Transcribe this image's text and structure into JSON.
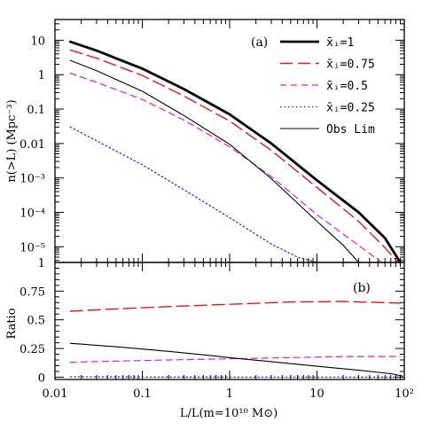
{
  "chart_data": [
    {
      "type": "line",
      "panel_label": "(a)",
      "ylabel": "n(>L) (Mpc⁻³)",
      "xscale": "log",
      "yscale": "log",
      "xlim": [
        0.01,
        100
      ],
      "ylim": [
        3.5e-06,
        40
      ],
      "xticks": [
        {
          "v": 0.01,
          "label": ""
        },
        {
          "v": 0.1,
          "label": ""
        },
        {
          "v": 1,
          "label": ""
        },
        {
          "v": 10,
          "label": ""
        },
        {
          "v": 100,
          "label": ""
        }
      ],
      "yticks": [
        {
          "v": 10,
          "label": "10"
        },
        {
          "v": 1,
          "label": "1"
        },
        {
          "v": 0.1,
          "label": "0.1"
        },
        {
          "v": 0.01,
          "label": "0.01"
        },
        {
          "v": 0.001,
          "label": "10⁻³"
        },
        {
          "v": 0.0001,
          "label": "10⁻⁴"
        },
        {
          "v": 1e-05,
          "label": "10⁻⁵"
        }
      ],
      "legend_position": "top-right",
      "series": [
        {
          "name": "x̄ᵢ=1",
          "color": "#000000",
          "dash": "",
          "width": 2.8,
          "x": [
            0.015,
            0.03,
            0.1,
            0.3,
            1,
            3,
            10,
            30,
            60,
            90
          ],
          "y": [
            9,
            5,
            1.5,
            0.38,
            0.07,
            0.01,
            0.00085,
            0.0001,
            1.8e-05,
            3.5e-06
          ]
        },
        {
          "name": "x̄ᵢ=0.75",
          "color": "#e8141c",
          "dash": "14,6",
          "width": 1.4,
          "x": [
            0.015,
            0.03,
            0.1,
            0.3,
            1,
            3,
            10,
            30,
            60,
            85
          ],
          "y": [
            5.2,
            3.0,
            0.95,
            0.24,
            0.045,
            0.0063,
            0.00053,
            5.5e-05,
            9.5e-06,
            3.5e-06
          ]
        },
        {
          "name": "x̄ᵢ=0.5",
          "color": "#e01cd6",
          "dash": "7,5",
          "width": 1.2,
          "x": [
            0.015,
            0.03,
            0.1,
            0.3,
            1,
            3,
            10,
            30,
            55
          ],
          "y": [
            1.1,
            0.6,
            0.19,
            0.048,
            0.008,
            0.0011,
            8.5e-05,
            1.1e-05,
            3.5e-06
          ]
        },
        {
          "name": "x̄ᵢ=0.25",
          "color": "#1c22d8",
          "dash": "1.5,3",
          "width": 1.2,
          "x": [
            0.015,
            0.03,
            0.1,
            0.3,
            1,
            3,
            6,
            10
          ],
          "y": [
            0.03,
            0.012,
            0.0024,
            0.00045,
            7e-05,
            1.2e-05,
            5e-06,
            3.5e-06
          ]
        },
        {
          "name": "Obs Lim",
          "color": "#000000",
          "dash": "",
          "width": 1.1,
          "x": [
            0.015,
            0.03,
            0.1,
            0.3,
            1,
            3,
            10,
            20,
            30
          ],
          "y": [
            2.6,
            1.3,
            0.33,
            0.065,
            0.0095,
            0.00095,
            5.5e-05,
            1.1e-05,
            3.5e-06
          ]
        }
      ]
    },
    {
      "type": "line",
      "panel_label": "(b)",
      "ylabel": "Ratio",
      "xlabel": "L/L(m=10¹⁰ M⊙)",
      "xscale": "log",
      "xlim": [
        0.01,
        100
      ],
      "ylim": [
        -0.02,
        1.0
      ],
      "xticks": [
        {
          "v": 0.01,
          "label": "0.01"
        },
        {
          "v": 0.1,
          "label": "0.1"
        },
        {
          "v": 1,
          "label": "1"
        },
        {
          "v": 10,
          "label": "10"
        },
        {
          "v": 100,
          "label": "10²"
        }
      ],
      "yticks": [
        {
          "v": 1,
          "label": "1"
        },
        {
          "v": 0.75,
          "label": "0.75"
        },
        {
          "v": 0.5,
          "label": "0.5"
        },
        {
          "v": 0.25,
          "label": "0.25"
        },
        {
          "v": 0,
          "label": "0"
        }
      ],
      "series": [
        {
          "name": "x̄ᵢ=0.75",
          "color": "#e8141c",
          "dash": "14,6",
          "width": 1.4,
          "x": [
            0.015,
            0.05,
            0.2,
            1,
            5,
            20,
            90
          ],
          "y": [
            0.575,
            0.595,
            0.615,
            0.635,
            0.655,
            0.66,
            0.645
          ]
        },
        {
          "name": "x̄ᵢ=0.5",
          "color": "#e01cd6",
          "dash": "7,5",
          "width": 1.2,
          "x": [
            0.015,
            0.05,
            0.2,
            1,
            5,
            20,
            90
          ],
          "y": [
            0.13,
            0.14,
            0.15,
            0.16,
            0.17,
            0.18,
            0.18
          ]
        },
        {
          "name": "x̄ᵢ=0.25",
          "color": "#1c22d8",
          "dash": "1.5,3",
          "width": 1.2,
          "x": [
            0.015,
            0.1,
            1,
            10,
            90
          ],
          "y": [
            0.003,
            0.002,
            0.001,
            0.0005,
            0.0
          ]
        },
        {
          "name": "Obs Lim",
          "color": "#000000",
          "dash": "",
          "width": 1.1,
          "x": [
            0.015,
            0.05,
            0.2,
            0.5,
            1,
            3,
            10,
            30,
            70,
            95
          ],
          "y": [
            0.295,
            0.265,
            0.225,
            0.195,
            0.17,
            0.135,
            0.095,
            0.06,
            0.03,
            0.01
          ]
        }
      ]
    }
  ]
}
